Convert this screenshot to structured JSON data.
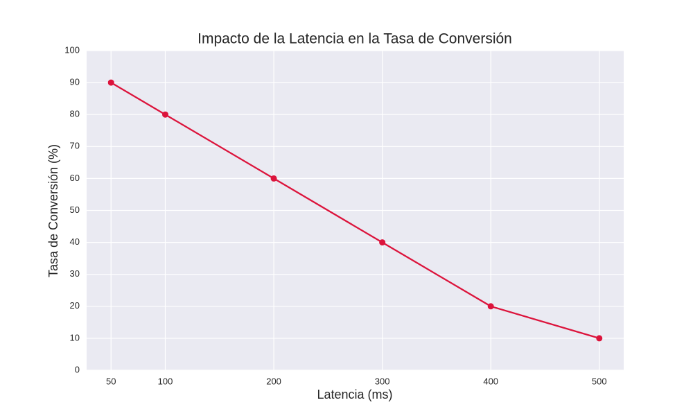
{
  "chart_data": {
    "type": "line",
    "title": "Impacto de la Latencia en la Tasa de Conversión",
    "x_label": "Latencia (ms)",
    "y_label": "Tasa de Conversión (%)",
    "x": [
      50,
      100,
      200,
      300,
      400,
      500
    ],
    "values": [
      90,
      80,
      60,
      40,
      20,
      10
    ],
    "color": "#dc143c",
    "xlim": [
      27.5,
      522.5
    ],
    "xticks": [
      50,
      100,
      200,
      300,
      400,
      500
    ],
    "ylim": [
      0,
      100
    ],
    "yticks": [
      0,
      10,
      20,
      30,
      40,
      50,
      60,
      70,
      80,
      90,
      100
    ],
    "grid": true
  }
}
